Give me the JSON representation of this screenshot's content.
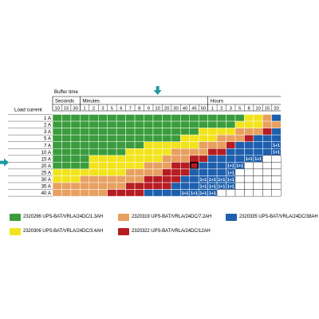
{
  "chart_data": {
    "type": "table",
    "header_top": "Buffer time",
    "row_header": "Load current",
    "groups": [
      {
        "label": "Seconds",
        "columns": [
          "10",
          "15",
          "30"
        ]
      },
      {
        "label": "Minutes",
        "columns": [
          "1",
          "2",
          "3",
          "5",
          "6",
          "7",
          "8",
          "9",
          "10",
          "20",
          "30",
          "40",
          "45",
          "50"
        ]
      },
      {
        "label": "Hours",
        "columns": [
          "1",
          "2",
          "3",
          "5",
          "8",
          "10",
          "15",
          "20"
        ]
      }
    ],
    "rows": [
      "1 A",
      "2 A",
      "3 A",
      "5 A",
      "7 A",
      "10 A",
      "15 A",
      "20 A",
      "25 A",
      "30 A",
      "35 A",
      "40 A"
    ],
    "legend": [
      {
        "key": "G",
        "label": "2320296 UPS-BAT/VRLA/24DC/1.3AH",
        "color": "#3a9c3c"
      },
      {
        "key": "O",
        "label": "2320319 UPS-BAT/VRLA/24DC/7.2AH",
        "color": "#e8a060"
      },
      {
        "key": "B",
        "label": "2320335 UPS-BAT/VRLA/24DC/38AH",
        "color": "#1e5fae"
      },
      {
        "key": "Y",
        "label": "2320306 UPS-BAT/VRLA/24DC/3.4AH",
        "color": "#f2e41c"
      },
      {
        "key": "R",
        "label": "2320322 UPS-BAT/VRLA/24DC/12AH",
        "color": "#b71c22"
      }
    ],
    "cells": [
      "GGGGGGGGGGGGGGGGGGGGGYYOBBBB",
      "GGGGGGGGGGGGGGGGGGGGYYYOORDD",
      "GGGGGGGGGGGGGGGGYYYYOOORBBDD",
      "GGGGGGGGGGGGGGYYYYOOORBBBBDD",
      "GGGGGGGGGGYYYYYYOOORBBBBDDWW",
      "GGGGGGGGYYYYYOOOORRBBBBBDWWW",
      "GGGGYYYYYYYYOOORRBBBBDDWWWWW",
      "GGGGYYYYYYOOORRXBBBDDWWWWWWW",
      "YYYYYYYYOOOORRRBBBBDWWWWWWWW",
      "YYYOOOOOOORRRRBBDDDDWWWWWWWW",
      "OOOOOOOORRRRRBBBDDDDWWWWWWWW",
      "OOOOOORRRRBBBBDDDDWWWWWWWWWW"
    ],
    "dual_mark_label": "1+1",
    "highlight": {
      "row": "20 A",
      "column": "10",
      "group": "Minutes"
    }
  },
  "colors": {
    "G": "#3a9c3c",
    "Y": "#f2e41c",
    "O": "#e8a060",
    "R": "#b71c22",
    "B": "#1e5fae",
    "W": "#ffffff",
    "arrow": "#1d9aa1",
    "grid": "#ffffff",
    "line": "#000000"
  }
}
